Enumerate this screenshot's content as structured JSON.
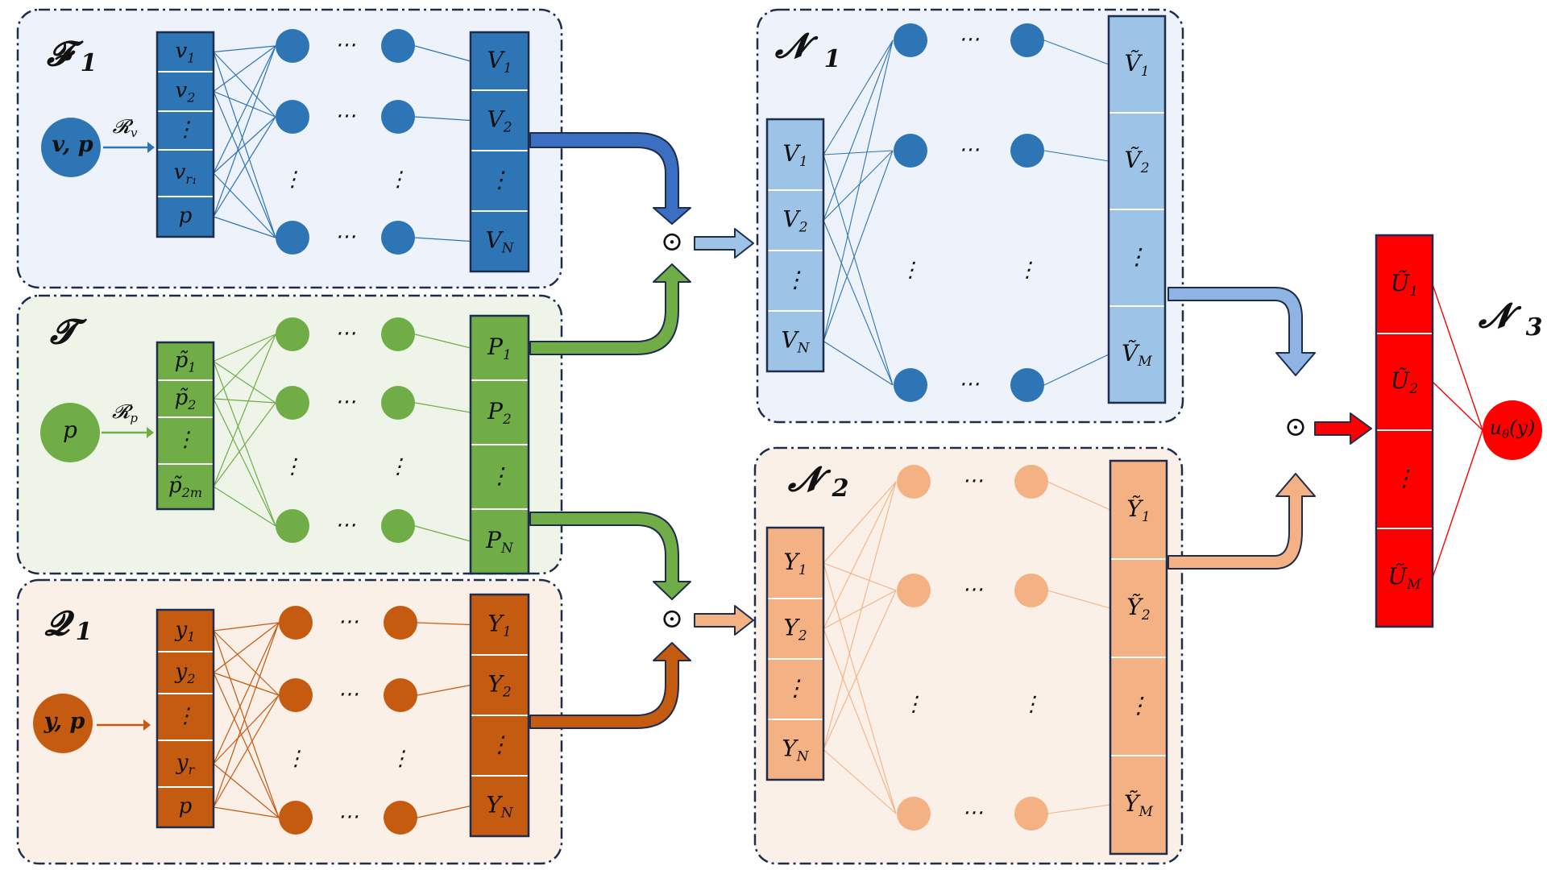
{
  "colors": {
    "blue": "#2e75b6",
    "blue_light": "#9dc3e6",
    "blue_bg": "#eef3fb",
    "green": "#70ad47",
    "green_bg": "#eef5e8",
    "orange": "#c55a11",
    "orange_light": "#f4b183",
    "orange_bg": "#fbf0e8",
    "red": "#ff0000",
    "border": "#1f2d4d"
  },
  "symbols": {
    "hdots": "⋯",
    "vdots": "⋮",
    "odot": "⊙"
  },
  "panels": {
    "F1": {
      "title": "𝓕",
      "title_sub": "1",
      "source": "v, p",
      "map_label": "𝓡",
      "map_sub": "v",
      "inputs": [
        {
          "base": "v",
          "sub": "1"
        },
        {
          "base": "v",
          "sub": "2"
        },
        {
          "base": "⋮",
          "sub": ""
        },
        {
          "base": "v",
          "sub": "r₁"
        },
        {
          "base": "p",
          "sub": ""
        }
      ],
      "outputs": [
        {
          "base": "V",
          "sub": "1"
        },
        {
          "base": "V",
          "sub": "2"
        },
        {
          "base": "⋮",
          "sub": ""
        },
        {
          "base": "V",
          "sub": "N"
        }
      ]
    },
    "T": {
      "title": "𝓣",
      "title_sub": "",
      "source": "p",
      "map_label": "𝓡",
      "map_sub": "p",
      "inputs": [
        {
          "base": "p̃",
          "sub": "1"
        },
        {
          "base": "p̃",
          "sub": "2"
        },
        {
          "base": "⋮",
          "sub": ""
        },
        {
          "base": "p̃",
          "sub": "2m"
        }
      ],
      "outputs": [
        {
          "base": "P",
          "sub": "1"
        },
        {
          "base": "P",
          "sub": "2"
        },
        {
          "base": "⋮",
          "sub": ""
        },
        {
          "base": "P",
          "sub": "N"
        }
      ]
    },
    "Q1": {
      "title": "𝓠",
      "title_sub": "1",
      "source": "y, p",
      "map_label": "",
      "map_sub": "",
      "inputs": [
        {
          "base": "y",
          "sub": "1"
        },
        {
          "base": "y",
          "sub": "2"
        },
        {
          "base": "⋮",
          "sub": ""
        },
        {
          "base": "y",
          "sub": "r"
        },
        {
          "base": "p",
          "sub": ""
        }
      ],
      "outputs": [
        {
          "base": "Y",
          "sub": "1"
        },
        {
          "base": "Y",
          "sub": "2"
        },
        {
          "base": "⋮",
          "sub": ""
        },
        {
          "base": "Y",
          "sub": "N"
        }
      ]
    },
    "N1": {
      "title": "𝓝",
      "title_sub": "1",
      "inputs": [
        {
          "base": "V",
          "sub": "1"
        },
        {
          "base": "V",
          "sub": "2"
        },
        {
          "base": "⋮",
          "sub": ""
        },
        {
          "base": "V",
          "sub": "N"
        }
      ],
      "outputs": [
        {
          "base": "Ṽ",
          "sub": "1"
        },
        {
          "base": "Ṽ",
          "sub": "2"
        },
        {
          "base": "⋮",
          "sub": ""
        },
        {
          "base": "Ṽ",
          "sub": "M"
        }
      ]
    },
    "N2": {
      "title": "𝓝",
      "title_sub": "2",
      "inputs": [
        {
          "base": "Y",
          "sub": "1"
        },
        {
          "base": "Y",
          "sub": "2"
        },
        {
          "base": "⋮",
          "sub": ""
        },
        {
          "base": "Y",
          "sub": "N"
        }
      ],
      "outputs": [
        {
          "base": "Ỹ",
          "sub": "1"
        },
        {
          "base": "Ỹ",
          "sub": "2"
        },
        {
          "base": "⋮",
          "sub": ""
        },
        {
          "base": "Ỹ",
          "sub": "M"
        }
      ]
    },
    "N3": {
      "title": "𝓝",
      "title_sub": "3",
      "inputs": [
        {
          "base": "Ũ",
          "sub": "1"
        },
        {
          "base": "Ũ",
          "sub": "2"
        },
        {
          "base": "⋮",
          "sub": ""
        },
        {
          "base": "Ũ",
          "sub": "M"
        }
      ],
      "output_base": "u",
      "output_sub": "θ",
      "output_arg": "(y)"
    }
  }
}
